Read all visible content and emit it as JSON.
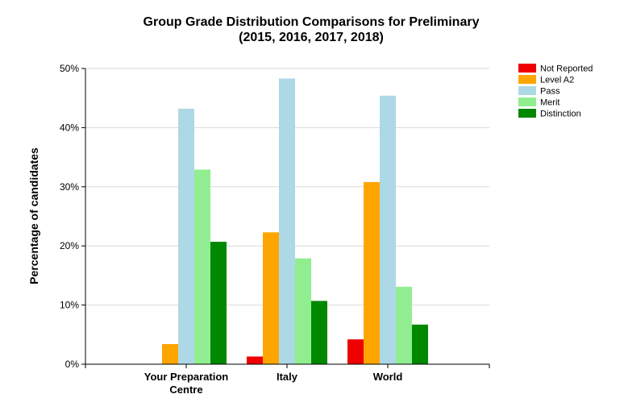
{
  "chart_data": {
    "type": "bar",
    "title": "Group Grade Distribution Comparisons for Preliminary",
    "subtitle": "(2015, 2016, 2017, 2018)",
    "xlabel": "",
    "ylabel": "Percentage of candidates",
    "categories": [
      "Your Preparation Centre",
      "Italy",
      "World"
    ],
    "category_lines": [
      [
        "Your Preparation",
        "Centre"
      ],
      [
        "Italy"
      ],
      [
        "World"
      ]
    ],
    "ylim": [
      0,
      50
    ],
    "yticks": [
      0,
      10,
      20,
      30,
      40,
      50
    ],
    "ytick_labels": [
      "0%",
      "10%",
      "20%",
      "30%",
      "40%",
      "50%"
    ],
    "grid": true,
    "legend_position": "top-right",
    "series": [
      {
        "name": "Not Reported",
        "color": "#ee0000",
        "values": [
          0,
          1.3,
          4.2
        ]
      },
      {
        "name": "Level A2",
        "color": "#ffa500",
        "values": [
          3.4,
          22.3,
          30.8
        ]
      },
      {
        "name": "Pass",
        "color": "#add8e6",
        "values": [
          43.2,
          48.3,
          45.4
        ]
      },
      {
        "name": "Merit",
        "color": "#90ee90",
        "values": [
          32.9,
          17.9,
          13.1
        ]
      },
      {
        "name": "Distinction",
        "color": "#008800",
        "values": [
          20.7,
          10.7,
          6.7
        ]
      }
    ]
  }
}
